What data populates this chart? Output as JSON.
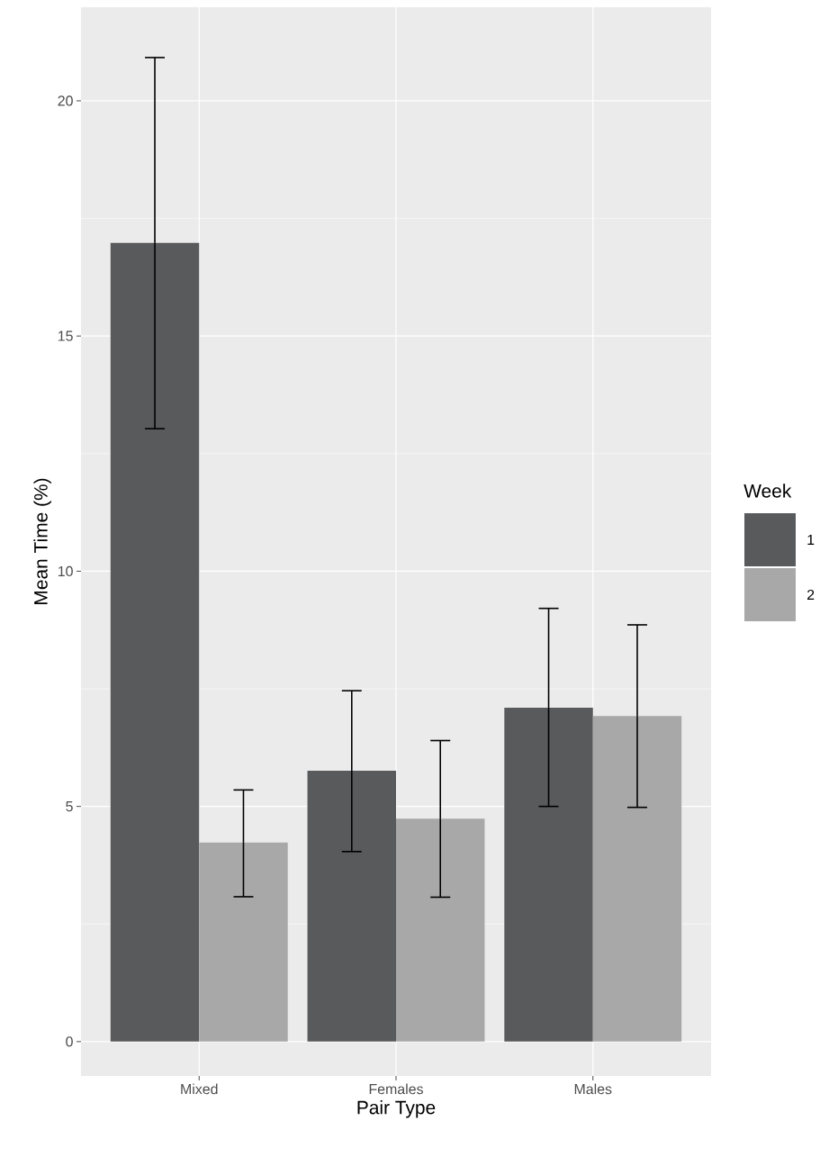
{
  "chart_data": {
    "type": "bar",
    "xlabel": "Pair Type",
    "ylabel": "Mean Time (%)",
    "legend_title": "Week",
    "categories": [
      "Mixed",
      "Females",
      "Males"
    ],
    "series": [
      {
        "name": "1",
        "color": "#595a5c",
        "values": [
          16.98,
          5.76,
          7.1
        ],
        "errors": [
          [
            13.03,
            20.92
          ],
          [
            4.04,
            7.46
          ],
          [
            5.0,
            9.21
          ]
        ]
      },
      {
        "name": "2",
        "color": "#a8a8a8",
        "values": [
          4.23,
          4.74,
          6.92
        ],
        "errors": [
          [
            3.08,
            5.35
          ],
          [
            3.07,
            6.4
          ],
          [
            4.98,
            8.86
          ]
        ]
      }
    ],
    "ylim": [
      -0.73,
      21.99
    ],
    "yticks": [
      0,
      5,
      10,
      15,
      20
    ],
    "grid": true,
    "legend": "right"
  }
}
